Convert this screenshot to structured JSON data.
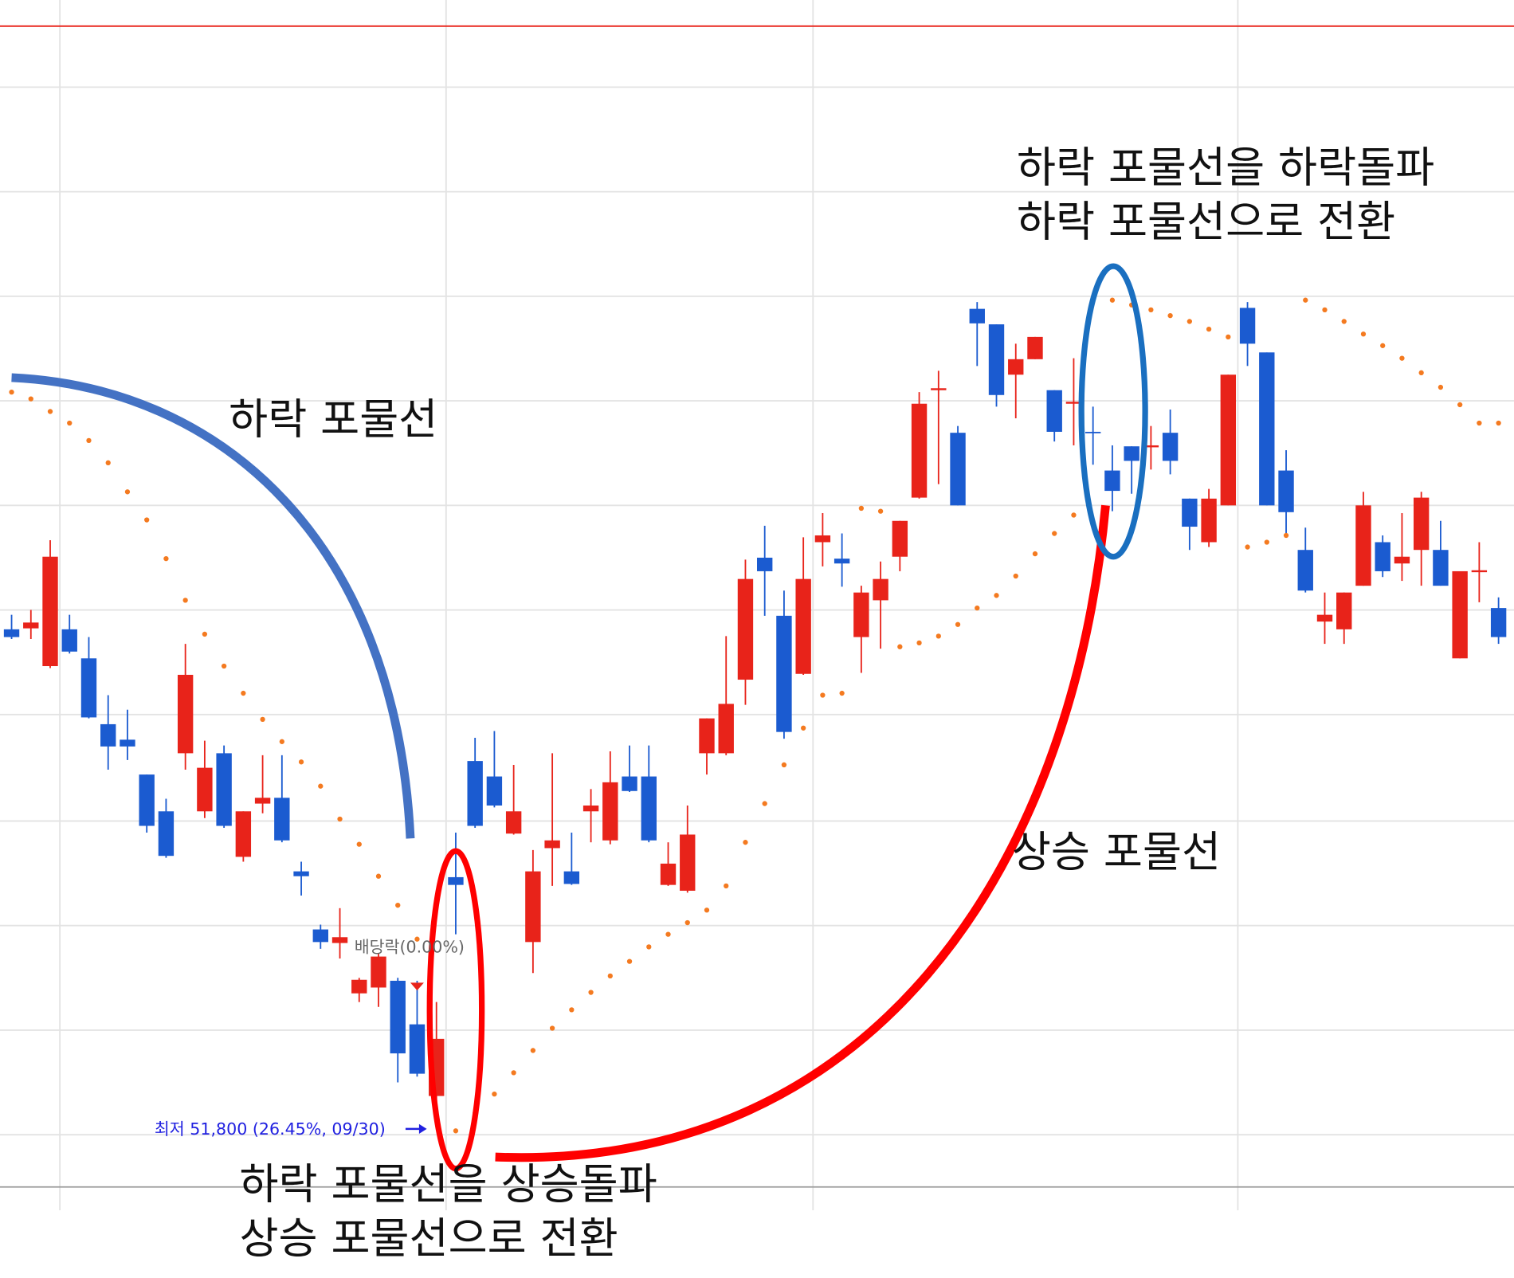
{
  "chart_data": {
    "type": "candlestick",
    "ylim": [
      48700,
      75100
    ],
    "up_color": "#e8231a",
    "down_color": "#1b5bd0",
    "sar_color": "#f47a20",
    "open": [
      62100,
      62120,
      61340,
      62100,
      61500,
      60140,
      59820,
      59100,
      58340,
      59540,
      58340,
      59540,
      57400,
      58500,
      58620,
      57100,
      55900,
      55620,
      54580,
      54700,
      54840,
      53940,
      52460,
      56980,
      59380,
      59060,
      57880,
      55640,
      57580,
      57100,
      58340,
      57740,
      59060,
      59060,
      56820,
      56700,
      59540,
      59540,
      61060,
      63580,
      62380,
      61180,
      63900,
      63560,
      61940,
      62700,
      63600,
      64820,
      67040,
      66160,
      68720,
      68400,
      67360,
      67680,
      67040,
      66760,
      66180,
      65380,
      65880,
      65860,
      66160,
      64800,
      63900,
      64660,
      68740,
      67820,
      65380,
      63740,
      62260,
      62100,
      63000,
      63900,
      63460,
      63740,
      63740,
      61500,
      63280,
      62540
    ],
    "high": [
      62400,
      62500,
      63940,
      62400,
      61940,
      60740,
      60440,
      59100,
      58600,
      61800,
      59800,
      59700,
      58340,
      59500,
      59500,
      57300,
      56000,
      56340,
      54900,
      55400,
      54900,
      54840,
      54400,
      57900,
      59860,
      60000,
      59300,
      57540,
      59540,
      57900,
      58800,
      59580,
      59700,
      59700,
      57700,
      58460,
      60260,
      61960,
      63540,
      64240,
      62900,
      64000,
      64500,
      64080,
      63000,
      63500,
      64340,
      67000,
      67440,
      66300,
      68860,
      68400,
      68000,
      68140,
      67040,
      67700,
      66700,
      65900,
      65880,
      66300,
      66640,
      64800,
      65000,
      67360,
      68860,
      67820,
      65800,
      64200,
      62860,
      62860,
      64940,
      64040,
      64500,
      64940,
      64340,
      63300,
      63900,
      62760
    ],
    "low": [
      61900,
      61900,
      61300,
      61600,
      60260,
      59200,
      59400,
      57900,
      57380,
      59200,
      58200,
      58000,
      57300,
      58300,
      57700,
      56600,
      55500,
      55300,
      54400,
      54300,
      52740,
      52860,
      51800,
      55800,
      58000,
      58420,
      57860,
      55000,
      56800,
      56820,
      57700,
      57660,
      58740,
      57700,
      56800,
      56660,
      59100,
      59500,
      60540,
      62380,
      59840,
      61160,
      63400,
      62980,
      61200,
      61700,
      63300,
      64800,
      65100,
      64660,
      67540,
      66700,
      66460,
      67680,
      65980,
      65900,
      65500,
      64540,
      64900,
      65400,
      65300,
      63740,
      63800,
      64660,
      67540,
      64660,
      64000,
      62860,
      61800,
      61800,
      63000,
      63180,
      63100,
      63000,
      63000,
      61500,
      62660,
      61800
    ],
    "close": [
      61940,
      62240,
      63600,
      61640,
      60280,
      59680,
      59680,
      58040,
      57420,
      61160,
      59240,
      58040,
      58340,
      58620,
      57740,
      57000,
      55640,
      55740,
      54860,
      55340,
      53340,
      52920,
      53640,
      56820,
      58040,
      58460,
      58340,
      57100,
      57740,
      56840,
      58460,
      58940,
      58760,
      57740,
      57260,
      57860,
      60260,
      60560,
      63140,
      63300,
      59980,
      63140,
      64040,
      63460,
      62860,
      63140,
      64340,
      66760,
      67080,
      64660,
      68420,
      66940,
      67680,
      68140,
      66180,
      66800,
      66160,
      64960,
      65580,
      65900,
      65580,
      64220,
      64800,
      67360,
      68000,
      64660,
      64520,
      62900,
      62400,
      62860,
      64660,
      63300,
      63600,
      64820,
      63000,
      63300,
      63320,
      61940
    ],
    "sar": [
      67000,
      66860,
      66600,
      66360,
      66000,
      65540,
      64940,
      64360,
      63560,
      62700,
      62000,
      61340,
      60780,
      60240,
      59780,
      59360,
      58860,
      58180,
      57660,
      57000,
      56400,
      55700,
      null,
      51740,
      52100,
      52500,
      52940,
      53400,
      53860,
      54240,
      54600,
      54940,
      55240,
      55540,
      55800,
      56040,
      56300,
      56800,
      57700,
      58500,
      59300,
      60060,
      60740,
      60780,
      64600,
      64540,
      61740,
      61820,
      61960,
      62200,
      62540,
      62800,
      63200,
      63660,
      64080,
      64460,
      null,
      68900,
      68800,
      68700,
      68580,
      68460,
      68300,
      68140,
      63800,
      63900,
      64040,
      68900,
      68700,
      68460,
      68200,
      67960,
      67700,
      67400,
      67100,
      66740,
      66360,
      66360
    ],
    "annotations": {
      "downtrend": "하락 포물선",
      "uptrend": "상승 포물선",
      "break_up": [
        "하락 포물선을 상승돌파",
        "상승 포물선으로 전환"
      ],
      "break_down": [
        "하락 포물선을 하락돌파",
        "하락 포물선으로 전환"
      ],
      "dividend": "배당락(0.00%)",
      "low_label": "최저 51,800 (26.45%, 09/30)"
    }
  }
}
